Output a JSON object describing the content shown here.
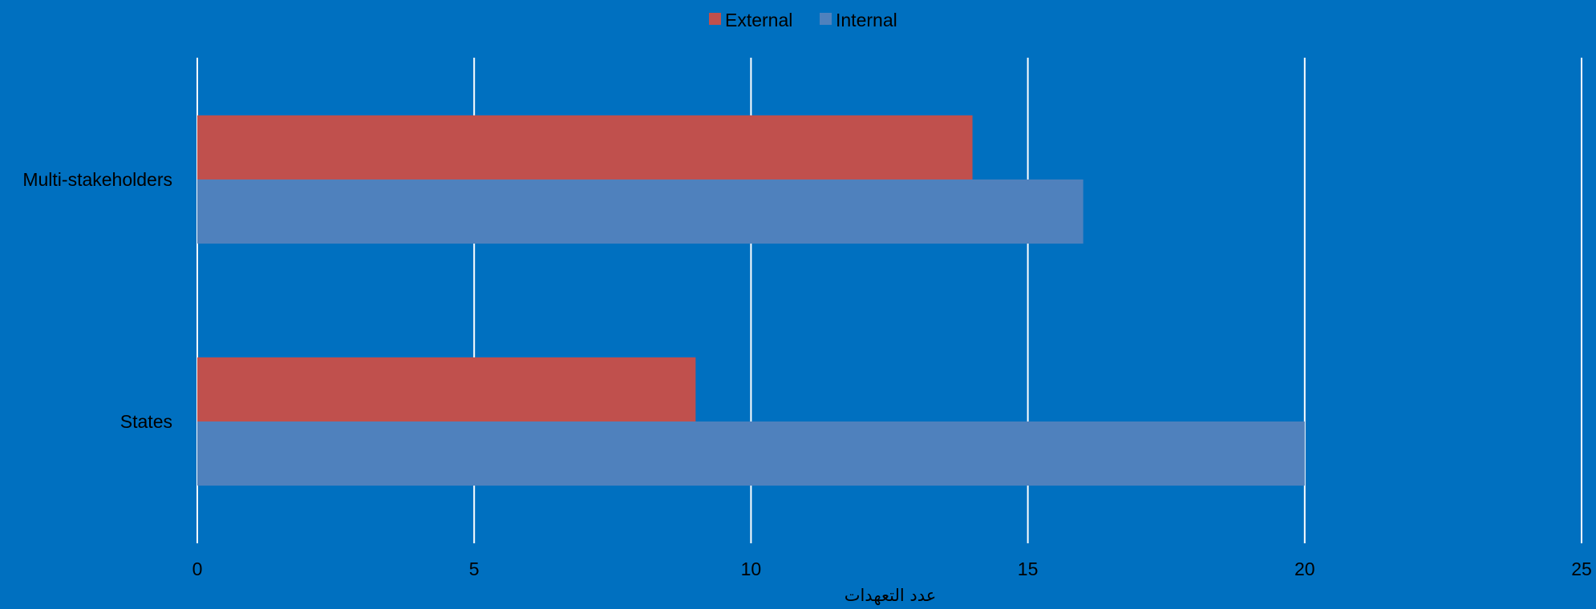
{
  "chart_data": {
    "type": "bar",
    "orientation": "horizontal",
    "categories": [
      "Multi-stakeholders",
      "States"
    ],
    "series": [
      {
        "name": "External",
        "values": [
          14,
          9
        ],
        "color": "#C0504D"
      },
      {
        "name": "Internal",
        "values": [
          16,
          20
        ],
        "color": "#4F81BD"
      }
    ],
    "title": "",
    "xlabel": "عدد التعهدات",
    "ylabel": "",
    "xlim": [
      0,
      25
    ],
    "x_ticks": [
      "0",
      "5",
      "10",
      "15",
      "20",
      "25"
    ],
    "grid": true,
    "legend": "top-center",
    "colors": {
      "background": "#0070C0",
      "gridlines": "#FFFFFF",
      "text": "#000000"
    }
  }
}
